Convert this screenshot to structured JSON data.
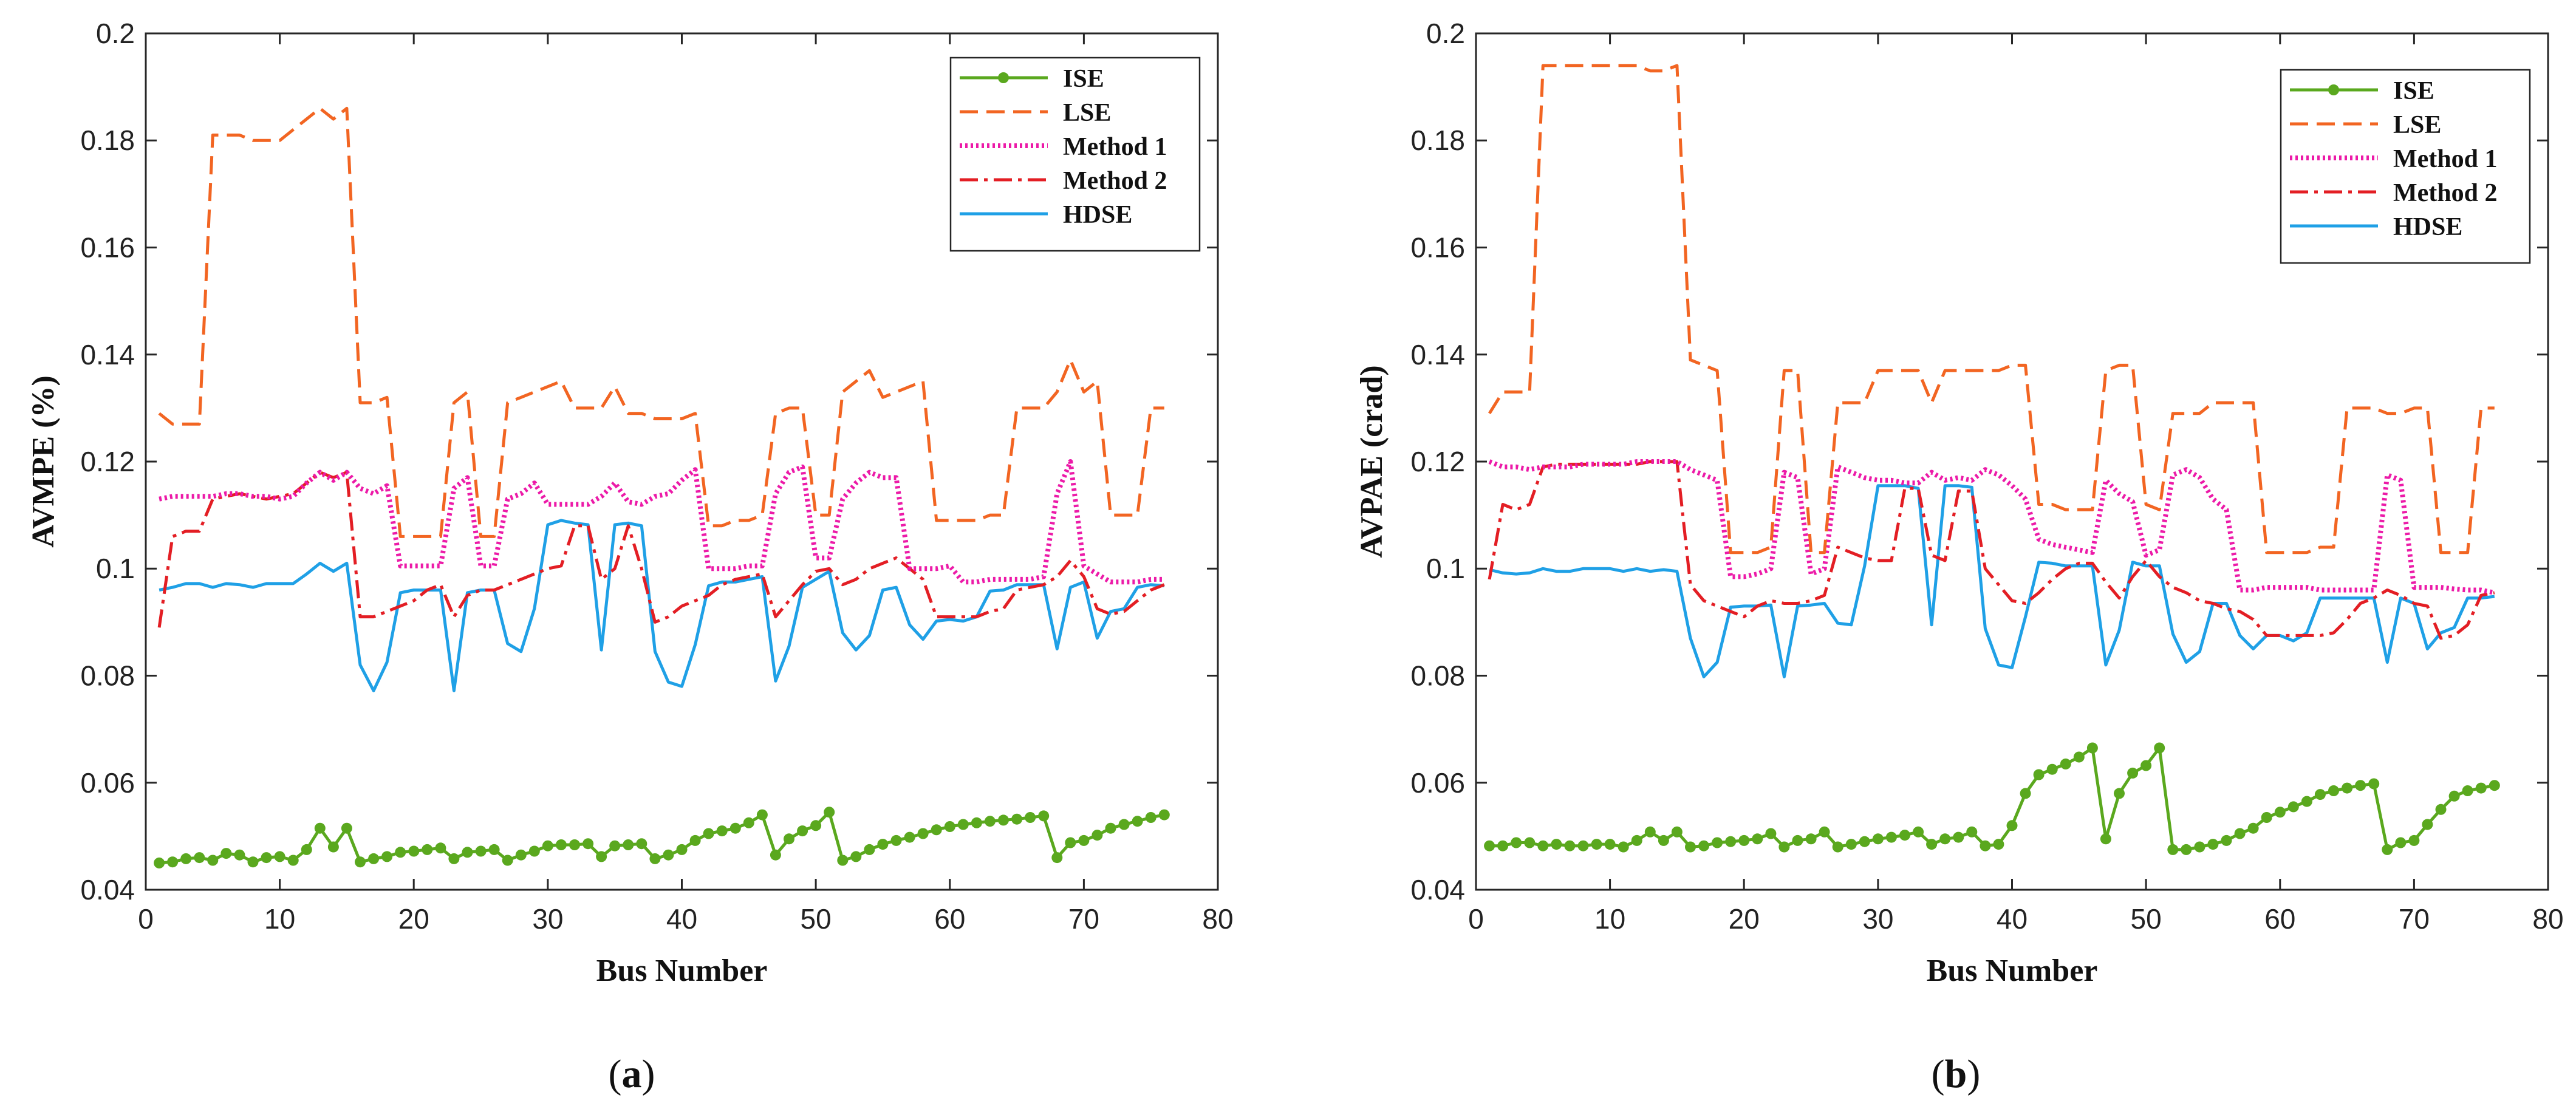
{
  "chart_data": [
    {
      "type": "line",
      "panel": "a",
      "caption_open": "(",
      "caption_letter": "a",
      "caption_close": ")",
      "xlabel": "Bus Number",
      "ylabel": "AVMPE (%)",
      "xlim": [
        0,
        80
      ],
      "ylim": [
        0.04,
        0.2
      ],
      "xticks": [
        0,
        10,
        20,
        30,
        40,
        50,
        60,
        70,
        80
      ],
      "yticks": [
        0.04,
        0.06,
        0.08,
        0.1,
        0.12,
        0.14,
        0.16,
        0.18,
        0.2
      ],
      "ytick_labels": [
        "0.04",
        "0.06",
        "0.08",
        "0.1",
        "0.12",
        "0.14",
        "0.16",
        "0.18",
        "0.2"
      ],
      "legend_position": "top-right",
      "series": [
        {
          "name": "ISE",
          "color": "#5aa81e",
          "style": "solid-dots",
          "values": [
            0.045,
            0.0452,
            0.0458,
            0.046,
            0.0455,
            0.0468,
            0.0465,
            0.0452,
            0.046,
            0.0462,
            0.0455,
            0.0475,
            0.0515,
            0.048,
            0.0515,
            0.0452,
            0.0458,
            0.0462,
            0.047,
            0.0472,
            0.0475,
            0.0478,
            0.0458,
            0.047,
            0.0472,
            0.0475,
            0.0455,
            0.0465,
            0.0472,
            0.0482,
            0.0484,
            0.0484,
            0.0486,
            0.0462,
            0.0482,
            0.0484,
            0.0486,
            0.0458,
            0.0465,
            0.0475,
            0.0492,
            0.0505,
            0.051,
            0.0515,
            0.0525,
            0.054,
            0.0465,
            0.0495,
            0.051,
            0.052,
            0.0545,
            0.0455,
            0.0462,
            0.0475,
            0.0485,
            0.0492,
            0.0498,
            0.0505,
            0.0512,
            0.0518,
            0.0522,
            0.0525,
            0.0528,
            0.053,
            0.0532,
            0.0535,
            0.0538,
            0.046,
            0.0488,
            0.0492,
            0.0502,
            0.0515,
            0.0522,
            0.0528,
            0.0535,
            0.054
          ]
        },
        {
          "name": "LSE",
          "color": "#f26522",
          "style": "dashed",
          "values": [
            0.129,
            0.127,
            0.127,
            0.127,
            0.181,
            0.181,
            0.181,
            0.18,
            0.18,
            0.18,
            0.182,
            0.184,
            0.186,
            0.184,
            0.186,
            0.131,
            0.131,
            0.132,
            0.106,
            0.106,
            0.106,
            0.106,
            0.131,
            0.133,
            0.106,
            0.106,
            0.131,
            0.132,
            0.133,
            0.134,
            0.135,
            0.13,
            0.13,
            0.13,
            0.134,
            0.129,
            0.129,
            0.128,
            0.128,
            0.128,
            0.129,
            0.108,
            0.108,
            0.109,
            0.109,
            0.11,
            0.129,
            0.13,
            0.13,
            0.11,
            0.11,
            0.133,
            0.135,
            0.137,
            0.132,
            0.133,
            0.134,
            0.135,
            0.109,
            0.109,
            0.109,
            0.109,
            0.11,
            0.11,
            0.13,
            0.13,
            0.13,
            0.133,
            0.139,
            0.133,
            0.135,
            0.11,
            0.11,
            0.11,
            0.13,
            0.13
          ]
        },
        {
          "name": "Method 1",
          "color": "#ec1aa8",
          "style": "dotted",
          "values": [
            0.113,
            0.1135,
            0.1135,
            0.1135,
            0.1135,
            0.114,
            0.114,
            0.1135,
            0.1135,
            0.113,
            0.1135,
            0.116,
            0.118,
            0.1165,
            0.118,
            0.115,
            0.114,
            0.1155,
            0.1005,
            0.1005,
            0.1005,
            0.1005,
            0.115,
            0.117,
            0.1005,
            0.1005,
            0.113,
            0.114,
            0.116,
            0.112,
            0.112,
            0.112,
            0.112,
            0.1135,
            0.116,
            0.1125,
            0.112,
            0.1135,
            0.114,
            0.1165,
            0.1185,
            0.1,
            0.1,
            0.1,
            0.1005,
            0.1005,
            0.114,
            0.118,
            0.119,
            0.102,
            0.102,
            0.113,
            0.116,
            0.118,
            0.117,
            0.117,
            0.1,
            0.1,
            0.1,
            0.1005,
            0.0975,
            0.0975,
            0.098,
            0.098,
            0.098,
            0.098,
            0.0985,
            0.114,
            0.12,
            0.1005,
            0.099,
            0.0975,
            0.0975,
            0.0975,
            0.098,
            0.098
          ]
        },
        {
          "name": "Method 2",
          "color": "#e31e24",
          "style": "dashdot",
          "values": [
            0.089,
            0.106,
            0.107,
            0.107,
            0.113,
            0.1135,
            0.114,
            0.1135,
            0.113,
            0.1135,
            0.114,
            0.116,
            0.118,
            0.117,
            0.118,
            0.091,
            0.091,
            0.092,
            0.093,
            0.094,
            0.096,
            0.097,
            0.091,
            0.095,
            0.096,
            0.096,
            0.097,
            0.098,
            0.099,
            0.1,
            0.1005,
            0.108,
            0.108,
            0.098,
            0.1,
            0.108,
            0.1,
            0.09,
            0.091,
            0.093,
            0.094,
            0.095,
            0.097,
            0.098,
            0.0985,
            0.099,
            0.091,
            0.094,
            0.097,
            0.0995,
            0.1,
            0.097,
            0.098,
            0.1,
            0.101,
            0.102,
            0.1,
            0.098,
            0.091,
            0.091,
            0.091,
            0.091,
            0.092,
            0.0925,
            0.096,
            0.0965,
            0.097,
            0.0985,
            0.1015,
            0.0985,
            0.0925,
            0.0915,
            0.092,
            0.094,
            0.096,
            0.097
          ]
        },
        {
          "name": "HDSE",
          "color": "#1fa0e6",
          "style": "solid",
          "values": [
            0.096,
            0.0965,
            0.0972,
            0.0972,
            0.0965,
            0.0972,
            0.097,
            0.0965,
            0.0972,
            0.0972,
            0.0972,
            0.099,
            0.101,
            0.0995,
            0.101,
            0.082,
            0.0772,
            0.0825,
            0.0955,
            0.096,
            0.096,
            0.096,
            0.0772,
            0.0955,
            0.096,
            0.096,
            0.086,
            0.0845,
            0.0925,
            0.1082,
            0.109,
            0.1085,
            0.1082,
            0.0848,
            0.1082,
            0.1085,
            0.108,
            0.0845,
            0.0788,
            0.078,
            0.0858,
            0.0968,
            0.0975,
            0.0975,
            0.098,
            0.0985,
            0.079,
            0.0855,
            0.0965,
            0.098,
            0.0995,
            0.088,
            0.0848,
            0.0875,
            0.096,
            0.0965,
            0.0895,
            0.0868,
            0.0902,
            0.0905,
            0.0902,
            0.091,
            0.0958,
            0.096,
            0.097,
            0.097,
            0.097,
            0.085,
            0.0965,
            0.0975,
            0.087,
            0.092,
            0.0925,
            0.0965,
            0.097,
            0.0968
          ]
        }
      ]
    },
    {
      "type": "line",
      "panel": "b",
      "caption_open": "(",
      "caption_letter": "b",
      "caption_close": ")",
      "xlabel": "Bus Number",
      "ylabel": "AVPAE (crad)",
      "xlim": [
        0,
        80
      ],
      "ylim": [
        0.04,
        0.2
      ],
      "xticks": [
        0,
        10,
        20,
        30,
        40,
        50,
        60,
        70,
        80
      ],
      "yticks": [
        0.04,
        0.06,
        0.08,
        0.1,
        0.12,
        0.14,
        0.16,
        0.18,
        0.2
      ],
      "ytick_labels": [
        "0.04",
        "0.06",
        "0.08",
        "0.1",
        "0.12",
        "0.14",
        "0.16",
        "0.18",
        "0.2"
      ],
      "legend_position": "top-right",
      "series": [
        {
          "name": "ISE",
          "color": "#5aa81e",
          "style": "solid-dots",
          "values": [
            0.0482,
            0.0482,
            0.0488,
            0.0488,
            0.0482,
            0.0485,
            0.0482,
            0.0482,
            0.0485,
            0.0485,
            0.048,
            0.0492,
            0.0508,
            0.0492,
            0.0508,
            0.048,
            0.0482,
            0.0488,
            0.049,
            0.0492,
            0.0495,
            0.0505,
            0.048,
            0.0492,
            0.0495,
            0.0508,
            0.048,
            0.0485,
            0.049,
            0.0495,
            0.0498,
            0.0502,
            0.0508,
            0.0485,
            0.0495,
            0.0498,
            0.0508,
            0.0482,
            0.0485,
            0.052,
            0.058,
            0.0615,
            0.0625,
            0.0635,
            0.0648,
            0.0665,
            0.0495,
            0.058,
            0.0618,
            0.0632,
            0.0665,
            0.0475,
            0.0475,
            0.048,
            0.0485,
            0.0492,
            0.0505,
            0.0515,
            0.0535,
            0.0545,
            0.0555,
            0.0565,
            0.0578,
            0.0585,
            0.059,
            0.0595,
            0.0598,
            0.0475,
            0.0488,
            0.0492,
            0.0522,
            0.055,
            0.0575,
            0.0585,
            0.059,
            0.0595
          ]
        },
        {
          "name": "LSE",
          "color": "#f26522",
          "style": "dashed",
          "values": [
            0.129,
            0.133,
            0.133,
            0.133,
            0.194,
            0.194,
            0.194,
            0.194,
            0.194,
            0.194,
            0.194,
            0.194,
            0.193,
            0.193,
            0.194,
            0.139,
            0.138,
            0.137,
            0.103,
            0.103,
            0.103,
            0.104,
            0.137,
            0.137,
            0.103,
            0.103,
            0.131,
            0.131,
            0.131,
            0.137,
            0.137,
            0.137,
            0.137,
            0.131,
            0.137,
            0.137,
            0.137,
            0.137,
            0.137,
            0.138,
            0.138,
            0.112,
            0.112,
            0.111,
            0.111,
            0.111,
            0.137,
            0.138,
            0.138,
            0.112,
            0.111,
            0.129,
            0.129,
            0.129,
            0.131,
            0.131,
            0.131,
            0.131,
            0.103,
            0.103,
            0.103,
            0.103,
            0.104,
            0.104,
            0.13,
            0.13,
            0.13,
            0.129,
            0.129,
            0.13,
            0.13,
            0.103,
            0.103,
            0.103,
            0.13,
            0.13
          ]
        },
        {
          "name": "Method 1",
          "color": "#ec1aa8",
          "style": "dotted",
          "values": [
            0.12,
            0.119,
            0.119,
            0.1185,
            0.119,
            0.119,
            0.119,
            0.1195,
            0.1195,
            0.1195,
            0.1195,
            0.12,
            0.12,
            0.12,
            0.12,
            0.1185,
            0.1175,
            0.1165,
            0.0985,
            0.0985,
            0.099,
            0.1,
            0.118,
            0.117,
            0.099,
            0.1,
            0.119,
            0.118,
            0.117,
            0.1165,
            0.1165,
            0.116,
            0.116,
            0.118,
            0.1165,
            0.117,
            0.1165,
            0.1185,
            0.1175,
            0.1155,
            0.113,
            0.1055,
            0.1045,
            0.104,
            0.1035,
            0.103,
            0.1165,
            0.114,
            0.1125,
            0.1025,
            0.1035,
            0.1175,
            0.1185,
            0.117,
            0.113,
            0.111,
            0.096,
            0.096,
            0.0965,
            0.0965,
            0.0965,
            0.0965,
            0.096,
            0.096,
            0.096,
            0.096,
            0.096,
            0.1175,
            0.1165,
            0.0965,
            0.0965,
            0.0965,
            0.0962,
            0.096,
            0.096,
            0.0955
          ]
        },
        {
          "name": "Method 2",
          "color": "#e31e24",
          "style": "dashdot",
          "values": [
            0.098,
            0.112,
            0.111,
            0.112,
            0.119,
            0.1195,
            0.1195,
            0.1195,
            0.1195,
            0.1195,
            0.1195,
            0.1195,
            0.12,
            0.12,
            0.12,
            0.097,
            0.094,
            0.093,
            0.092,
            0.091,
            0.093,
            0.094,
            0.0935,
            0.0935,
            0.094,
            0.095,
            0.104,
            0.103,
            0.102,
            0.1015,
            0.1015,
            0.115,
            0.115,
            0.1025,
            0.1015,
            0.1145,
            0.1145,
            0.1,
            0.097,
            0.094,
            0.0935,
            0.0955,
            0.098,
            0.1,
            0.101,
            0.101,
            0.0975,
            0.0945,
            0.0985,
            0.1015,
            0.0985,
            0.0965,
            0.0955,
            0.094,
            0.0935,
            0.0925,
            0.092,
            0.0905,
            0.0875,
            0.0875,
            0.0875,
            0.0875,
            0.0875,
            0.088,
            0.0905,
            0.0935,
            0.0945,
            0.096,
            0.095,
            0.0935,
            0.093,
            0.087,
            0.0875,
            0.0895,
            0.095,
            0.0955
          ]
        },
        {
          "name": "HDSE",
          "color": "#1fa0e6",
          "style": "solid",
          "values": [
            0.0998,
            0.0992,
            0.099,
            0.0992,
            0.1,
            0.0995,
            0.0995,
            0.1,
            0.1,
            0.1,
            0.0995,
            0.1,
            0.0995,
            0.0998,
            0.0995,
            0.087,
            0.0798,
            0.0825,
            0.0928,
            0.093,
            0.093,
            0.0932,
            0.0798,
            0.093,
            0.0932,
            0.0935,
            0.0898,
            0.0895,
            0.1005,
            0.1155,
            0.1155,
            0.1155,
            0.115,
            0.0895,
            0.1155,
            0.1155,
            0.1152,
            0.0888,
            0.082,
            0.0815,
            0.091,
            0.1012,
            0.101,
            0.1005,
            0.1005,
            0.1005,
            0.082,
            0.0885,
            0.1012,
            0.1005,
            0.1005,
            0.0878,
            0.0825,
            0.0845,
            0.0935,
            0.0935,
            0.0875,
            0.085,
            0.0875,
            0.0875,
            0.0865,
            0.088,
            0.0945,
            0.0945,
            0.0945,
            0.0945,
            0.0945,
            0.0825,
            0.0945,
            0.0935,
            0.085,
            0.088,
            0.089,
            0.0945,
            0.0945,
            0.0948
          ]
        }
      ]
    }
  ]
}
